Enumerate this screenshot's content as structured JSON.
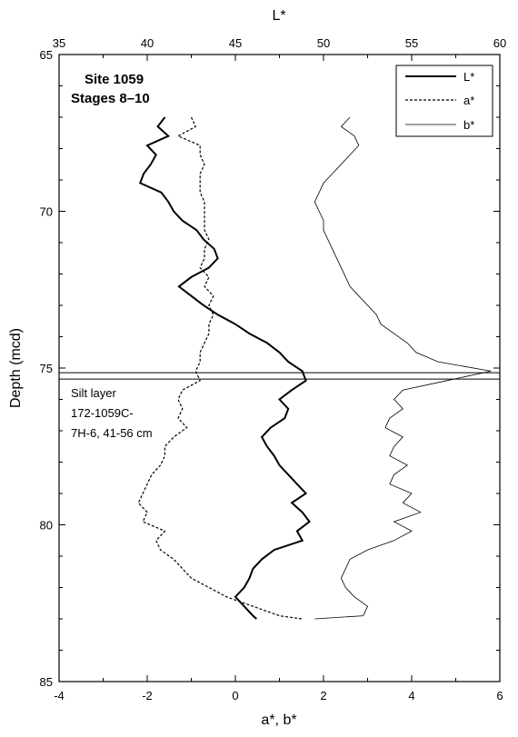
{
  "chart_data": {
    "type": "line",
    "title": "",
    "top_axis": {
      "label": "L*",
      "min": 35,
      "max": 60,
      "ticks": [
        "35",
        "40",
        "45",
        "50",
        "55",
        "60"
      ]
    },
    "bottom_axis": {
      "label": "a*, b*",
      "min": -4,
      "max": 6,
      "ticks": [
        "-4",
        "-2",
        "0",
        "2",
        "4",
        "6"
      ]
    },
    "y_axis": {
      "label": "Depth (mcd)",
      "min": 65,
      "max": 85,
      "inverted": true,
      "ticks": [
        "65",
        "70",
        "75",
        "80",
        "85"
      ]
    },
    "grid": false,
    "legend_position": "top-right",
    "annotations": {
      "site": "Site 1059",
      "stages": "Stages 8–10",
      "silt_lines": [
        "Silt layer",
        "172-1059C-",
        "7H-6, 41-56 cm"
      ]
    },
    "silt_layer_depths": [
      75.15,
      75.35
    ],
    "series": [
      {
        "name": "L*",
        "axis": "top",
        "style": "solid-thick",
        "depth": [
          67.0,
          67.3,
          67.6,
          67.9,
          68.2,
          68.5,
          68.8,
          69.1,
          69.4,
          69.7,
          70.0,
          70.3,
          70.6,
          70.9,
          71.2,
          71.5,
          71.8,
          72.1,
          72.4,
          72.7,
          73.0,
          73.3,
          73.6,
          73.9,
          74.2,
          74.5,
          74.8,
          75.1,
          75.4,
          75.7,
          76.0,
          76.3,
          76.6,
          76.9,
          77.2,
          77.5,
          77.8,
          78.1,
          78.4,
          78.7,
          79.0,
          79.3,
          79.6,
          79.9,
          80.2,
          80.5,
          80.8,
          81.1,
          81.4,
          81.7,
          82.0,
          82.3,
          82.6,
          82.9,
          83.0
        ],
        "values": [
          41.0,
          40.6,
          41.2,
          40.0,
          40.5,
          40.2,
          39.8,
          39.6,
          40.8,
          41.2,
          41.5,
          42.0,
          42.8,
          43.2,
          43.8,
          44.0,
          43.5,
          42.5,
          41.8,
          42.5,
          43.2,
          44.0,
          45.0,
          45.8,
          46.8,
          47.5,
          48.0,
          48.8,
          49.0,
          48.2,
          47.5,
          48.0,
          47.8,
          47.0,
          46.5,
          46.8,
          47.2,
          47.5,
          48.0,
          48.5,
          49.0,
          48.2,
          48.8,
          49.2,
          48.5,
          48.8,
          47.2,
          46.5,
          46.0,
          45.8,
          45.5,
          45.0,
          45.5,
          46.0,
          46.2
        ]
      },
      {
        "name": "a*",
        "axis": "bottom",
        "style": "dashed",
        "depth": [
          67.0,
          67.3,
          67.6,
          67.9,
          68.2,
          68.5,
          68.8,
          69.1,
          69.4,
          69.7,
          70.0,
          70.3,
          70.6,
          70.9,
          71.2,
          71.5,
          71.8,
          72.1,
          72.4,
          72.7,
          73.0,
          73.3,
          73.6,
          73.9,
          74.2,
          74.5,
          74.8,
          75.1,
          75.4,
          75.7,
          76.0,
          76.3,
          76.6,
          76.9,
          77.2,
          77.5,
          77.8,
          78.1,
          78.4,
          78.7,
          79.0,
          79.3,
          79.6,
          79.9,
          80.2,
          80.5,
          80.8,
          81.1,
          81.4,
          81.7,
          82.0,
          82.3,
          82.6,
          82.9,
          83.0
        ],
        "values": [
          -1.0,
          -0.9,
          -1.3,
          -0.8,
          -0.8,
          -0.7,
          -0.8,
          -0.8,
          -0.8,
          -0.7,
          -0.7,
          -0.7,
          -0.7,
          -0.6,
          -0.7,
          -0.7,
          -0.8,
          -0.6,
          -0.7,
          -0.5,
          -0.6,
          -0.5,
          -0.6,
          -0.6,
          -0.7,
          -0.8,
          -0.8,
          -0.9,
          -0.8,
          -1.2,
          -1.3,
          -1.2,
          -1.3,
          -1.1,
          -1.4,
          -1.6,
          -1.6,
          -1.7,
          -1.9,
          -2.0,
          -2.1,
          -2.2,
          -2.0,
          -2.1,
          -1.6,
          -1.8,
          -1.7,
          -1.4,
          -1.2,
          -1.0,
          -0.6,
          -0.2,
          0.4,
          1.0,
          1.5
        ]
      },
      {
        "name": "b*",
        "axis": "bottom",
        "style": "solid-thin",
        "depth": [
          67.0,
          67.3,
          67.6,
          67.9,
          68.2,
          68.5,
          68.8,
          69.1,
          69.4,
          69.7,
          70.0,
          70.3,
          70.6,
          70.9,
          71.2,
          71.5,
          71.8,
          72.1,
          72.4,
          72.7,
          73.0,
          73.3,
          73.6,
          73.9,
          74.2,
          74.5,
          74.8,
          75.1,
          75.4,
          75.7,
          76.0,
          76.3,
          76.6,
          76.9,
          77.2,
          77.5,
          77.8,
          78.1,
          78.4,
          78.7,
          79.0,
          79.3,
          79.6,
          79.9,
          80.2,
          80.5,
          80.8,
          81.1,
          81.4,
          81.7,
          82.0,
          82.3,
          82.6,
          82.9,
          83.0
        ],
        "values": [
          2.6,
          2.4,
          2.7,
          2.8,
          2.6,
          2.4,
          2.2,
          2.0,
          1.9,
          1.8,
          1.9,
          2.0,
          2.0,
          2.1,
          2.2,
          2.3,
          2.4,
          2.5,
          2.6,
          2.8,
          3.0,
          3.2,
          3.3,
          3.6,
          3.9,
          4.1,
          4.6,
          5.8,
          4.8,
          3.8,
          3.6,
          3.8,
          3.5,
          3.4,
          3.8,
          3.6,
          3.5,
          3.9,
          3.6,
          3.5,
          4.0,
          3.8,
          4.2,
          3.6,
          4.0,
          3.6,
          3.0,
          2.6,
          2.5,
          2.4,
          2.5,
          2.7,
          3.0,
          2.9,
          1.8
        ]
      }
    ]
  }
}
